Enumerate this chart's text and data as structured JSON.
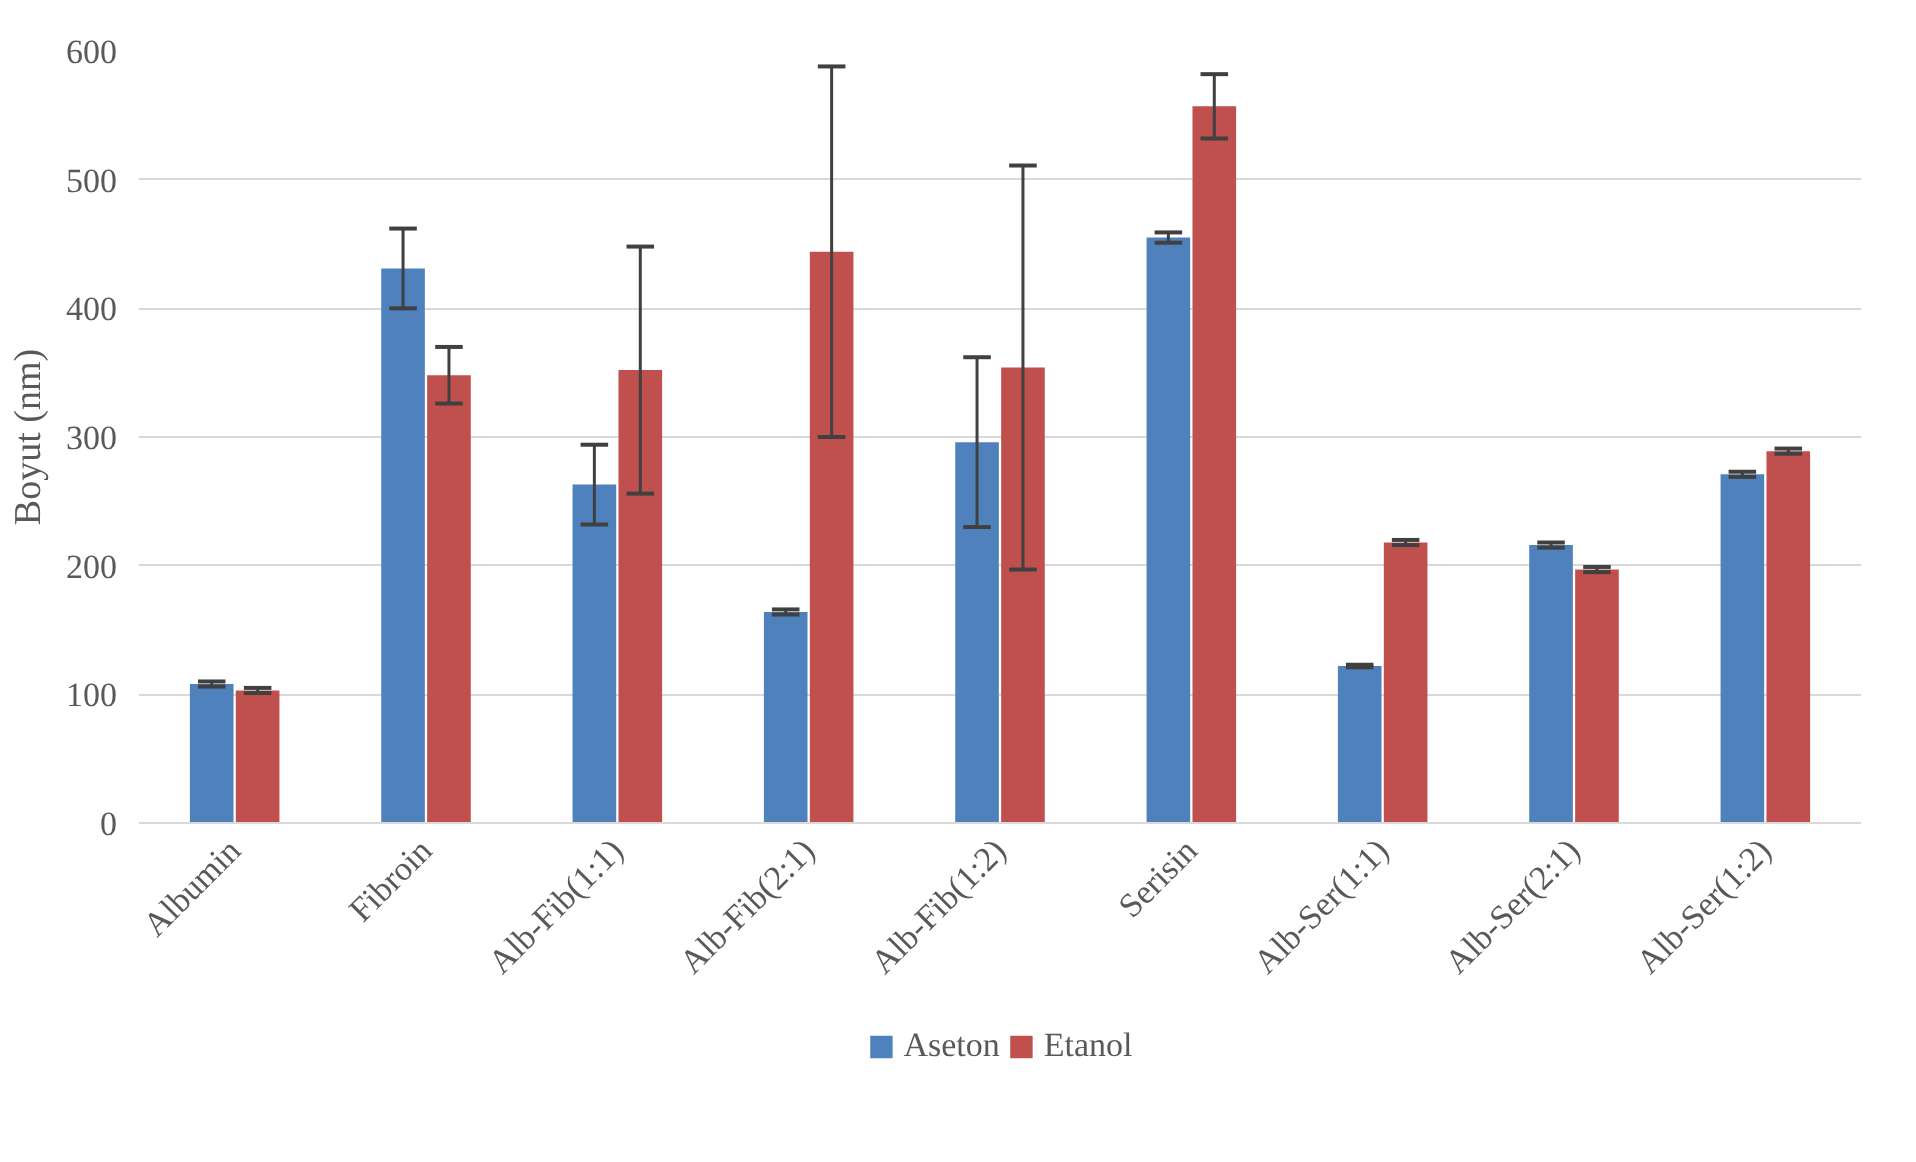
{
  "chart_data": {
    "type": "bar",
    "ylabel": "Boyut (nm)",
    "categories": [
      "Albumin",
      "Fibroin",
      "Alb-Fib(1:1)",
      "Alb-Fib(2:1)",
      "Alb-Fib(1:2)",
      "Serisin",
      "Alb-Ser(1:1)",
      "Alb-Ser(2:1)",
      "Alb-Ser(1:2)"
    ],
    "series": [
      {
        "name": "Aseton",
        "color": "#4f81bd",
        "values": [
          108,
          431,
          263,
          164,
          296,
          455,
          122,
          216,
          271
        ],
        "errors": [
          2,
          31,
          31,
          2,
          66,
          4,
          1,
          2,
          2
        ]
      },
      {
        "name": "Etanol",
        "color": "#c0504d",
        "values": [
          103,
          348,
          352,
          444,
          354,
          557,
          218,
          197,
          289
        ],
        "errors": [
          2,
          22,
          96,
          144,
          157,
          25,
          2,
          2,
          2
        ]
      }
    ],
    "ylim": [
      0,
      600
    ],
    "yticks": [
      0,
      100,
      200,
      300,
      400,
      500,
      600
    ],
    "grid": "y",
    "legend": "bottom"
  }
}
